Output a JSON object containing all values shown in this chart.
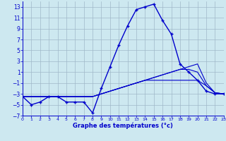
{
  "title": "Graphe des températures (°c)",
  "background_color": "#cde8f0",
  "grid_color": "#a0b8c8",
  "line_color": "#0000cc",
  "x_values": [
    0,
    1,
    2,
    3,
    4,
    5,
    6,
    7,
    8,
    9,
    10,
    11,
    12,
    13,
    14,
    15,
    16,
    17,
    18,
    19,
    20,
    21,
    22,
    23
  ],
  "temp_main": [
    -3.5,
    -5.0,
    -4.5,
    -3.5,
    -3.5,
    -4.5,
    -4.5,
    -4.5,
    -6.5,
    -2.0,
    2.0,
    6.0,
    9.5,
    12.5,
    13.0,
    13.5,
    10.5,
    8.0,
    2.5,
    1.0,
    -0.5,
    -2.5,
    -3.0,
    -3.0
  ],
  "temp_line2": [
    -3.5,
    -3.5,
    -3.5,
    -3.5,
    -3.5,
    -3.5,
    -3.5,
    -3.5,
    -3.5,
    -3.0,
    -2.5,
    -2.0,
    -1.5,
    -1.0,
    -0.5,
    0.0,
    0.5,
    1.0,
    1.5,
    2.0,
    2.5,
    -1.0,
    -2.8,
    -3.0
  ],
  "temp_line3": [
    -3.5,
    -3.5,
    -3.5,
    -3.5,
    -3.5,
    -3.5,
    -3.5,
    -3.5,
    -3.5,
    -3.0,
    -2.5,
    -2.0,
    -1.5,
    -1.0,
    -0.5,
    0.0,
    0.5,
    1.0,
    1.5,
    1.5,
    1.0,
    -1.5,
    -2.8,
    -3.0
  ],
  "temp_line4": [
    -3.5,
    -3.5,
    -3.5,
    -3.5,
    -3.5,
    -3.5,
    -3.5,
    -3.5,
    -3.5,
    -3.0,
    -2.5,
    -2.0,
    -1.5,
    -1.0,
    -0.5,
    -0.5,
    -0.5,
    -0.5,
    -0.5,
    -0.5,
    -0.5,
    -1.5,
    -2.8,
    -3.0
  ],
  "ylim": [
    -7,
    14
  ],
  "xlim": [
    0,
    23
  ],
  "yticks": [
    -7,
    -5,
    -3,
    -1,
    1,
    3,
    5,
    7,
    9,
    11,
    13
  ],
  "xticks": [
    0,
    1,
    2,
    3,
    4,
    5,
    6,
    7,
    8,
    9,
    10,
    11,
    12,
    13,
    14,
    15,
    16,
    17,
    18,
    19,
    20,
    21,
    22,
    23
  ]
}
